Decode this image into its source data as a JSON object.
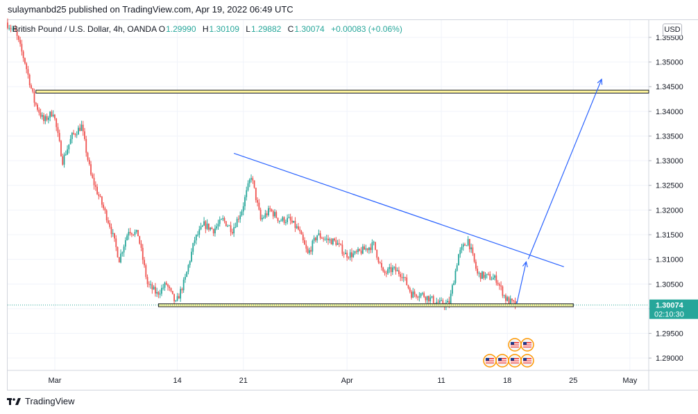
{
  "header": {
    "publish_line": "sulaymanbd25 published on TradingView.com, Apr 19, 2022 06:49 UTC"
  },
  "legend": {
    "symbol": "British Pound / U.S. Dollar, 4h, OANDA",
    "open_label": "O",
    "open": "1.29990",
    "high_label": "H",
    "high": "1.30109",
    "low_label": "L",
    "low": "1.29882",
    "close_label": "C",
    "close": "1.30074",
    "change": "+0.00083 (+0.06%)"
  },
  "currency_button": "USD",
  "price_badge": {
    "price": "1.30074",
    "countdown": "02:10:30",
    "color": "#26a69a"
  },
  "footer": {
    "brand": "TradingView"
  },
  "colors": {
    "up": "#26a69a",
    "down": "#ef5350",
    "trendline": "#2962ff",
    "zone_fill": "#fff59d",
    "zone_stroke": "#131722"
  },
  "chart_data": {
    "type": "candlestick",
    "y_axis": {
      "min": 1.2875,
      "max": 1.3585,
      "ticks": [
        "1.35500",
        "1.35000",
        "1.34500",
        "1.34000",
        "1.33500",
        "1.33000",
        "1.32500",
        "1.32000",
        "1.31500",
        "1.31000",
        "1.30500",
        "1.30000",
        "1.29500",
        "1.29000"
      ]
    },
    "x_axis": {
      "start_date": "2022-02-24",
      "end_date": "2022-05-03",
      "labels": [
        {
          "label": "Mar",
          "date": "2022-03-01"
        },
        {
          "label": "14",
          "date": "2022-03-14"
        },
        {
          "label": "21",
          "date": "2022-03-21"
        },
        {
          "label": "Apr",
          "date": "2022-04-01"
        },
        {
          "label": "11",
          "date": "2022-04-11"
        },
        {
          "label": "18",
          "date": "2022-04-18"
        },
        {
          "label": "25",
          "date": "2022-04-25"
        },
        {
          "label": "May",
          "date": "2022-05-01"
        }
      ]
    },
    "price_path": [
      [
        "2022-02-24",
        1.358
      ],
      [
        "2022-02-25",
        1.356
      ],
      [
        "2022-02-26",
        1.35
      ],
      [
        "2022-02-27",
        1.342
      ],
      [
        "2022-02-28",
        1.338
      ],
      [
        "2022-03-01",
        1.34
      ],
      [
        "2022-03-02",
        1.33
      ],
      [
        "2022-03-03",
        1.335
      ],
      [
        "2022-03-04",
        1.337
      ],
      [
        "2022-03-05",
        1.327
      ],
      [
        "2022-03-06",
        1.322
      ],
      [
        "2022-03-07",
        1.317
      ],
      [
        "2022-03-08",
        1.31
      ],
      [
        "2022-03-09",
        1.316
      ],
      [
        "2022-03-10",
        1.315
      ],
      [
        "2022-03-11",
        1.305
      ],
      [
        "2022-03-12",
        1.303
      ],
      [
        "2022-03-13",
        1.305
      ],
      [
        "2022-03-14",
        1.301
      ],
      [
        "2022-03-15",
        1.306
      ],
      [
        "2022-03-16",
        1.314
      ],
      [
        "2022-03-17",
        1.317
      ],
      [
        "2022-03-18",
        1.316
      ],
      [
        "2022-03-19",
        1.318
      ],
      [
        "2022-03-20",
        1.316
      ],
      [
        "2022-03-21",
        1.32
      ],
      [
        "2022-03-22",
        1.327
      ],
      [
        "2022-03-23",
        1.318
      ],
      [
        "2022-03-24",
        1.32
      ],
      [
        "2022-03-25",
        1.318
      ],
      [
        "2022-03-26",
        1.318
      ],
      [
        "2022-03-27",
        1.316
      ],
      [
        "2022-03-28",
        1.311
      ],
      [
        "2022-03-29",
        1.315
      ],
      [
        "2022-03-30",
        1.314
      ],
      [
        "2022-03-31",
        1.3135
      ],
      [
        "2022-04-01",
        1.311
      ],
      [
        "2022-04-02",
        1.311
      ],
      [
        "2022-04-03",
        1.312
      ],
      [
        "2022-04-04",
        1.313
      ],
      [
        "2022-04-05",
        1.307
      ],
      [
        "2022-04-06",
        1.308
      ],
      [
        "2022-04-07",
        1.307
      ],
      [
        "2022-04-08",
        1.303
      ],
      [
        "2022-04-09",
        1.303
      ],
      [
        "2022-04-10",
        1.302
      ],
      [
        "2022-04-11",
        1.301
      ],
      [
        "2022-04-12",
        1.301
      ],
      [
        "2022-04-13",
        1.311
      ],
      [
        "2022-04-14",
        1.314
      ],
      [
        "2022-04-15",
        1.307
      ],
      [
        "2022-04-16",
        1.3065
      ],
      [
        "2022-04-17",
        1.306
      ],
      [
        "2022-04-18",
        1.302
      ],
      [
        "2022-04-19",
        1.30074
      ]
    ],
    "zones": [
      {
        "from": "2022-02-27",
        "to": "2022-05-03",
        "top": 1.3443,
        "bottom": 1.3437
      },
      {
        "from": "2022-03-12",
        "to": "2022-04-25",
        "top": 1.301,
        "bottom": 1.3004
      }
    ],
    "trendline": [
      [
        "2022-03-20",
        1.3315
      ],
      [
        "2022-04-24",
        1.3085
      ]
    ],
    "projection": [
      [
        "2022-04-19",
        1.301
      ],
      [
        "2022-04-20",
        1.3095
      ],
      [
        "2022-04-28",
        1.3465
      ]
    ],
    "current_price_line": 1.30074
  }
}
